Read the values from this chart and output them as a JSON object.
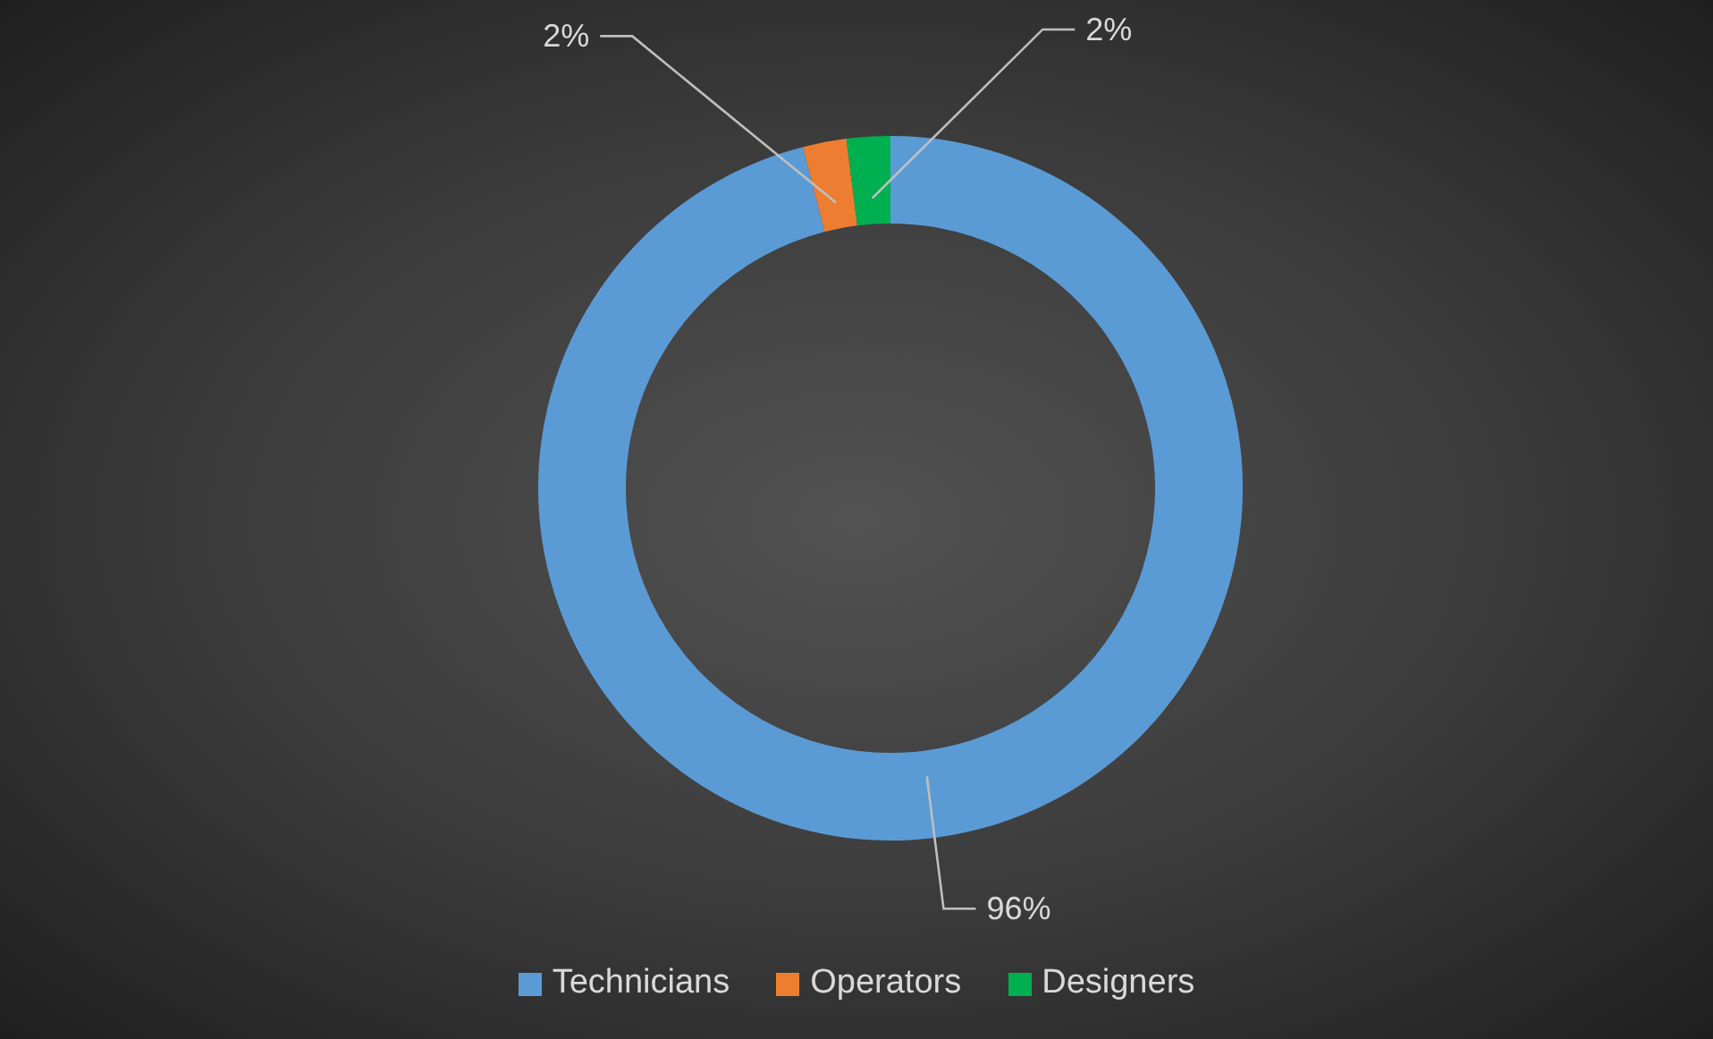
{
  "chart_data": {
    "type": "donut",
    "categories": [
      "Technicians",
      "Operators",
      "Designers"
    ],
    "values": [
      96,
      2,
      2
    ],
    "colors": [
      "#5b9bd5",
      "#ed7d31",
      "#00b050"
    ],
    "value_labels": [
      "96%",
      "2%",
      "2%"
    ],
    "legend": "bottom"
  }
}
